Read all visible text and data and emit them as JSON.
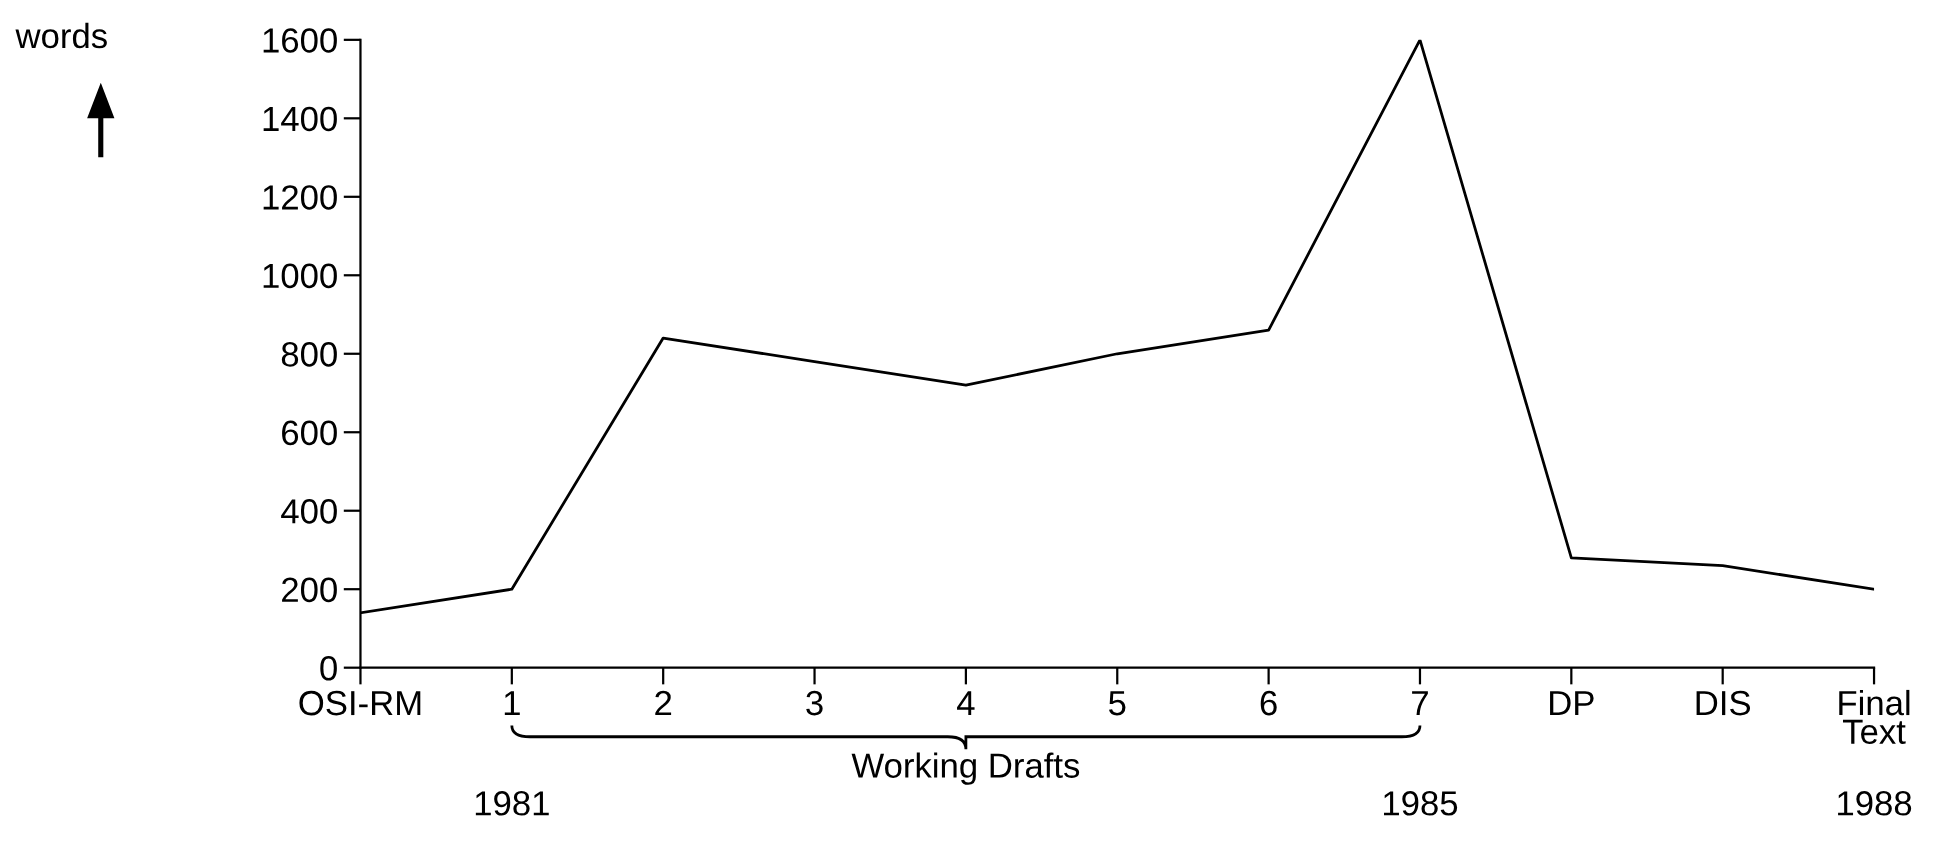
{
  "chart_data": {
    "type": "line",
    "ylabel": "words",
    "categories": [
      "OSI-RM",
      "1",
      "2",
      "3",
      "4",
      "5",
      "6",
      "7",
      "DP",
      "DIS",
      "Final\nText"
    ],
    "series": [
      {
        "color": "#000000",
        "values": [
          140,
          200,
          840,
          780,
          720,
          800,
          860,
          1600,
          280,
          260,
          200
        ]
      }
    ],
    "ylim": [
      0,
      1600
    ],
    "yticks": [
      0,
      200,
      400,
      600,
      800,
      1000,
      1200,
      1400,
      1600
    ],
    "grid": false,
    "legend": false,
    "marker": "none",
    "line_style": "solid",
    "annotations": [
      "1981",
      "Working Drafts",
      "1985",
      "1988"
    ]
  }
}
